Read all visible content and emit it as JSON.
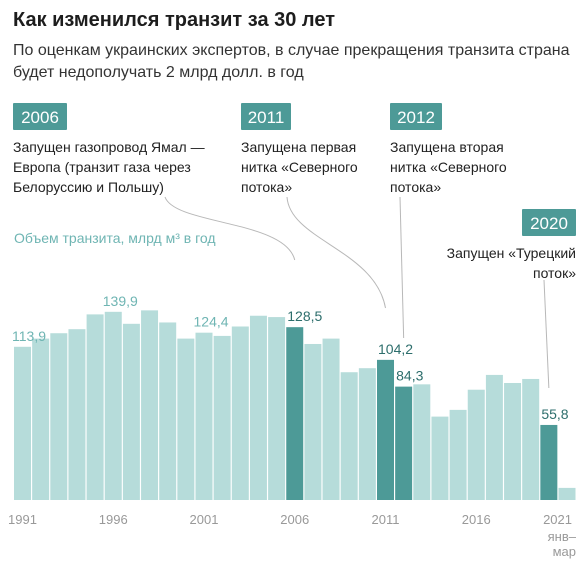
{
  "header": {
    "title": "Как изменился транзит за 30 лет",
    "subtitle": "По оценкам украинских экспертов, в случае прекращения транзита страна будет недополучать 2 млрд долл. в год"
  },
  "colors": {
    "bar_light": "#b6dcda",
    "bar_dark": "#4d9a97",
    "badge": "#4d9a97",
    "value_light": "#6fb5b3",
    "value_dark": "#2d6e6c"
  },
  "chart_data": {
    "type": "bar",
    "ylabel": "Объем транзита, млрд м³ в год",
    "ylim": [
      0,
      160
    ],
    "categories": [
      "1991",
      "1992",
      "1993",
      "1994",
      "1995",
      "1996",
      "1997",
      "1998",
      "1999",
      "2000",
      "2001",
      "2002",
      "2003",
      "2004",
      "2005",
      "2006",
      "2007",
      "2008",
      "2009",
      "2010",
      "2011",
      "2012",
      "2013",
      "2014",
      "2015",
      "2016",
      "2017",
      "2018",
      "2019",
      "2020",
      "2021 янв–мар"
    ],
    "values": [
      113.9,
      120,
      124,
      127,
      138,
      139.9,
      131,
      141,
      132,
      120,
      124.4,
      122,
      129,
      137,
      136,
      128.5,
      116,
      120,
      95,
      98,
      104.2,
      84.3,
      86,
      62,
      67,
      82,
      93,
      87,
      90,
      55.8,
      9
    ],
    "highlighted": [
      "2006",
      "2011",
      "2012",
      "2020"
    ],
    "value_labels": [
      {
        "category": "1991",
        "text": "113,9"
      },
      {
        "category": "1996",
        "text": "139,9"
      },
      {
        "category": "2001",
        "text": "124,4"
      },
      {
        "category": "2006",
        "text": "128,5"
      },
      {
        "category": "2011",
        "text": "104,2"
      },
      {
        "category": "2012",
        "text": "84,3"
      },
      {
        "category": "2020",
        "text": "55,8"
      }
    ],
    "tick_labels": [
      {
        "category": "1991",
        "text": "1991"
      },
      {
        "category": "1996",
        "text": "1996"
      },
      {
        "category": "2001",
        "text": "2001"
      },
      {
        "category": "2006",
        "text": "2006"
      },
      {
        "category": "2011",
        "text": "2011"
      },
      {
        "category": "2016",
        "text": "2016"
      },
      {
        "category": "2021 янв–мар",
        "text": "2021"
      }
    ],
    "tick_sublabel": [
      "янв–",
      "мар"
    ],
    "annotations": [
      {
        "badge": "2006",
        "category": "2006",
        "lines": [
          "Запущен газопровод Ямал —",
          "Европа (транзит газа через",
          "Белоруссию и Польшу)"
        ]
      },
      {
        "badge": "2011",
        "category": "2011",
        "lines": [
          "Запущена первая",
          "нитка «Северного",
          "потока»"
        ]
      },
      {
        "badge": "2012",
        "category": "2012",
        "lines": [
          "Запущена вторая",
          "нитка «Северного",
          "потока»"
        ]
      },
      {
        "badge": "2020",
        "category": "2020",
        "lines": [
          "Запущен «Турецкий",
          "поток»"
        ]
      }
    ]
  }
}
